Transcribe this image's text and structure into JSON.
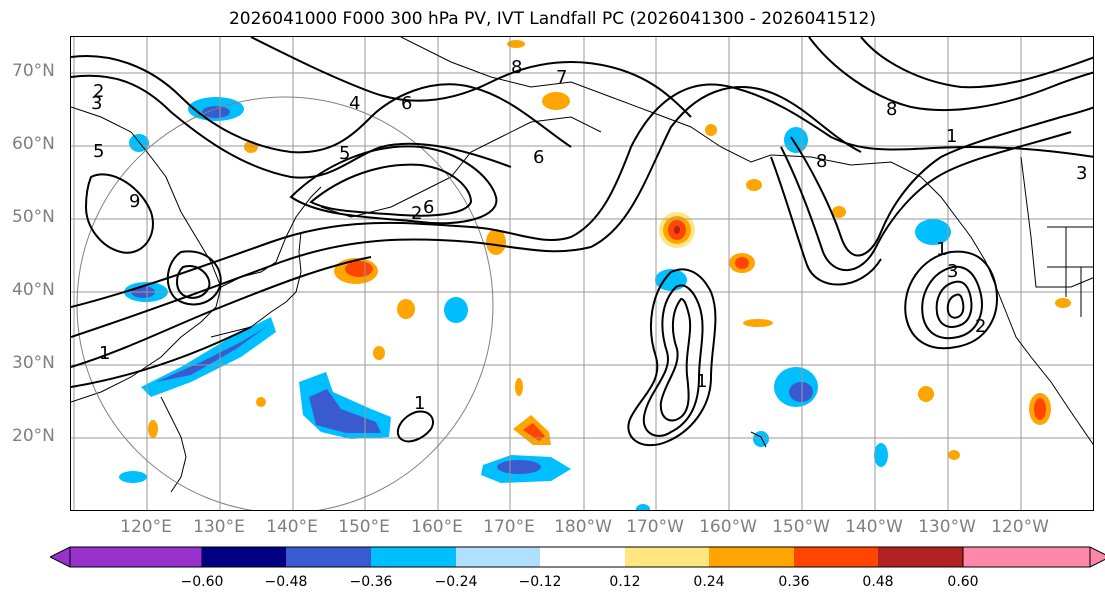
{
  "title": "2026041000 F000 300 hPa PV, IVT Landfall PC (2026041300 - 2026041512)",
  "lat_labels": [
    "70°N",
    "60°N",
    "50°N",
    "40°N",
    "30°N",
    "20°N"
  ],
  "lon_labels": [
    "120°E",
    "130°E",
    "140°E",
    "150°E",
    "160°E",
    "170°E",
    "180°W",
    "170°W",
    "160°W",
    "150°W",
    "140°W",
    "130°W",
    "120°W"
  ],
  "contour_labels": [
    "2",
    "3",
    "4",
    "5",
    "6",
    "7",
    "8",
    "9",
    "1",
    "2",
    "6",
    "1",
    "1",
    "1",
    "3",
    "2",
    "5",
    "3",
    "1",
    "6",
    "8",
    "8"
  ],
  "colorbar": {
    "ticks": [
      "−0.60",
      "−0.48",
      "−0.36",
      "−0.24",
      "−0.12",
      "0.12",
      "0.24",
      "0.36",
      "0.48",
      "0.60"
    ],
    "colors": {
      "under": "#9932cc",
      "bins": [
        "#000080",
        "#3a5bd0",
        "#00bfff",
        "#b0e0ff",
        "#ffffff",
        "#ffe680",
        "#ffa500",
        "#ff4500",
        "#b22222"
      ],
      "over": "#ff88aa"
    }
  }
}
